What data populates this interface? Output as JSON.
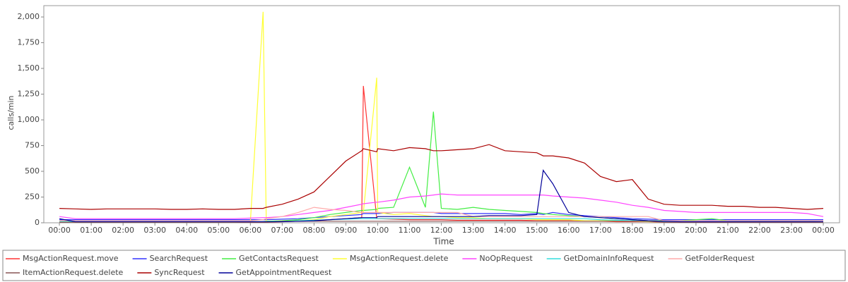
{
  "chart_data": {
    "type": "line",
    "x_label": "Time",
    "y_label": "calls/min",
    "x": [
      0,
      0.5,
      1,
      1.5,
      2,
      2.5,
      3,
      3.5,
      4,
      4.5,
      5,
      5.5,
      6,
      6.4,
      6.5,
      7,
      7.5,
      8,
      8.5,
      9,
      9.5,
      9.55,
      9.97,
      10,
      10.5,
      11,
      11.5,
      11.75,
      12,
      12.5,
      13,
      13.5,
      14,
      14.5,
      15,
      15.2,
      15.5,
      16,
      16.5,
      17,
      17.5,
      18,
      18.5,
      19,
      19.5,
      20,
      20.5,
      21,
      21.5,
      22,
      22.5,
      23,
      23.5,
      24
    ],
    "xlim": [
      -0.49,
      24.51
    ],
    "xticks": [
      {
        "value": 0,
        "label": "00:00"
      },
      {
        "value": 1,
        "label": "01:00"
      },
      {
        "value": 2,
        "label": "02:00"
      },
      {
        "value": 3,
        "label": "03:00"
      },
      {
        "value": 4,
        "label": "04:00"
      },
      {
        "value": 5,
        "label": "05:00"
      },
      {
        "value": 6,
        "label": "06:00"
      },
      {
        "value": 7,
        "label": "07:00"
      },
      {
        "value": 8,
        "label": "08:00"
      },
      {
        "value": 9,
        "label": "09:00"
      },
      {
        "value": 10,
        "label": "10:00"
      },
      {
        "value": 11,
        "label": "11:00"
      },
      {
        "value": 12,
        "label": "12:00"
      },
      {
        "value": 13,
        "label": "13:00"
      },
      {
        "value": 14,
        "label": "14:00"
      },
      {
        "value": 15,
        "label": "15:00"
      },
      {
        "value": 16,
        "label": "16:00"
      },
      {
        "value": 17,
        "label": "17:00"
      },
      {
        "value": 18,
        "label": "18:00"
      },
      {
        "value": 19,
        "label": "19:00"
      },
      {
        "value": 20,
        "label": "20:00"
      },
      {
        "value": 21,
        "label": "21:00"
      },
      {
        "value": 22,
        "label": "22:00"
      },
      {
        "value": 23,
        "label": "23:00"
      },
      {
        "value": 24,
        "label": "00:00"
      }
    ],
    "ylim": [
      0,
      2110
    ],
    "yticks": [
      0,
      250,
      500,
      750,
      {
        "value": 1000,
        "label": "1,000"
      },
      {
        "value": 1250,
        "label": "1,250"
      },
      {
        "value": 1500,
        "label": "1,500"
      },
      {
        "value": 1750,
        "label": "1,750"
      },
      {
        "value": 2000,
        "label": "2,000"
      }
    ],
    "grid": false,
    "legend": "bottom",
    "series": [
      {
        "name": "MsgActionRequest.move",
        "color": "#ff3333",
        "values": [
          5,
          5,
          5,
          5,
          5,
          5,
          5,
          5,
          5,
          5,
          5,
          5,
          5,
          5,
          5,
          10,
          15,
          20,
          30,
          40,
          50,
          1330,
          40,
          40,
          35,
          30,
          30,
          30,
          30,
          25,
          25,
          25,
          25,
          25,
          20,
          20,
          20,
          20,
          15,
          15,
          10,
          10,
          10,
          5,
          5,
          5,
          5,
          5,
          5,
          5,
          5,
          5,
          5,
          5
        ]
      },
      {
        "name": "SearchRequest",
        "color": "#3333ff",
        "values": [
          30,
          30,
          30,
          30,
          30,
          30,
          30,
          30,
          30,
          30,
          30,
          30,
          30,
          30,
          30,
          35,
          40,
          50,
          60,
          70,
          80,
          90,
          90,
          90,
          100,
          100,
          100,
          100,
          90,
          90,
          90,
          90,
          90,
          80,
          90,
          80,
          100,
          80,
          70,
          60,
          50,
          40,
          35,
          30,
          30,
          30,
          30,
          30,
          30,
          30,
          30,
          30,
          30,
          30
        ]
      },
      {
        "name": "GetContactsRequest",
        "color": "#44ee44",
        "values": [
          20,
          10,
          10,
          10,
          10,
          10,
          10,
          10,
          10,
          10,
          10,
          10,
          10,
          10,
          15,
          20,
          30,
          50,
          80,
          100,
          120,
          120,
          130,
          140,
          150,
          540,
          150,
          1080,
          140,
          130,
          150,
          130,
          120,
          110,
          100,
          90,
          80,
          70,
          60,
          50,
          40,
          30,
          20,
          20,
          20,
          30,
          40,
          20,
          15,
          15,
          15,
          15,
          15,
          10
        ]
      },
      {
        "name": "MsgActionRequest.delete",
        "color": "#ffff33",
        "values": [
          10,
          5,
          5,
          5,
          5,
          5,
          5,
          5,
          5,
          5,
          5,
          5,
          10,
          2050,
          10,
          15,
          20,
          30,
          60,
          80,
          100,
          100,
          1410,
          100,
          80,
          90,
          70,
          60,
          60,
          50,
          50,
          40,
          40,
          40,
          30,
          30,
          30,
          30,
          20,
          20,
          20,
          15,
          10,
          10,
          10,
          10,
          10,
          10,
          10,
          10,
          10,
          10,
          10,
          5
        ]
      },
      {
        "name": "NoOpRequest",
        "color": "#ff44ff",
        "values": [
          60,
          40,
          40,
          40,
          40,
          40,
          40,
          40,
          40,
          40,
          40,
          40,
          45,
          50,
          50,
          60,
          80,
          100,
          120,
          150,
          180,
          185,
          200,
          200,
          220,
          250,
          260,
          270,
          280,
          270,
          270,
          270,
          270,
          270,
          270,
          270,
          260,
          250,
          240,
          220,
          200,
          170,
          150,
          120,
          110,
          100,
          100,
          100,
          100,
          100,
          100,
          100,
          90,
          60
        ]
      },
      {
        "name": "GetDomainInfoRequest",
        "color": "#33dddd",
        "values": [
          10,
          10,
          10,
          10,
          10,
          10,
          10,
          10,
          10,
          10,
          10,
          10,
          10,
          10,
          10,
          15,
          20,
          25,
          30,
          35,
          40,
          40,
          40,
          40,
          40,
          40,
          40,
          40,
          40,
          40,
          40,
          40,
          40,
          40,
          40,
          40,
          40,
          40,
          40,
          30,
          25,
          20,
          15,
          10,
          10,
          10,
          10,
          10,
          10,
          10,
          10,
          10,
          10,
          10
        ]
      },
      {
        "name": "GetFolderRequest",
        "color": "#ffaaaa",
        "values": [
          20,
          20,
          20,
          20,
          20,
          20,
          20,
          20,
          20,
          20,
          20,
          20,
          20,
          30,
          40,
          60,
          100,
          150,
          130,
          120,
          100,
          100,
          100,
          100,
          100,
          100,
          100,
          100,
          100,
          100,
          60,
          60,
          60,
          60,
          60,
          60,
          60,
          60,
          60,
          60,
          60,
          60,
          60,
          20,
          20,
          20,
          20,
          20,
          20,
          20,
          20,
          20,
          20,
          20
        ]
      },
      {
        "name": "ItemActionRequest.delete",
        "color": "#885555",
        "values": [
          5,
          5,
          5,
          5,
          5,
          5,
          5,
          5,
          5,
          5,
          5,
          5,
          5,
          5,
          5,
          15,
          15,
          15,
          15,
          15,
          15,
          15,
          15,
          15,
          15,
          15,
          15,
          15,
          15,
          15,
          15,
          15,
          15,
          15,
          15,
          15,
          15,
          15,
          15,
          15,
          15,
          15,
          15,
          5,
          5,
          5,
          5,
          5,
          5,
          5,
          5,
          5,
          5,
          5
        ]
      },
      {
        "name": "SyncRequest",
        "color": "#aa0000",
        "values": [
          140,
          135,
          130,
          135,
          135,
          135,
          135,
          130,
          130,
          135,
          130,
          130,
          140,
          140,
          150,
          180,
          230,
          300,
          450,
          600,
          700,
          720,
          690,
          720,
          700,
          730,
          720,
          700,
          700,
          710,
          720,
          760,
          700,
          690,
          680,
          650,
          650,
          630,
          580,
          450,
          400,
          420,
          230,
          180,
          170,
          170,
          170,
          160,
          160,
          150,
          150,
          140,
          130,
          140
        ]
      },
      {
        "name": "GetAppointmentRequest",
        "color": "#000099",
        "values": [
          40,
          10,
          10,
          10,
          10,
          10,
          10,
          10,
          10,
          10,
          10,
          10,
          10,
          10,
          10,
          10,
          15,
          20,
          30,
          40,
          50,
          50,
          50,
          60,
          60,
          60,
          60,
          60,
          60,
          60,
          60,
          70,
          70,
          70,
          80,
          510,
          380,
          100,
          60,
          50,
          40,
          30,
          20,
          15,
          10,
          10,
          10,
          10,
          10,
          10,
          10,
          10,
          10,
          10
        ]
      }
    ]
  }
}
